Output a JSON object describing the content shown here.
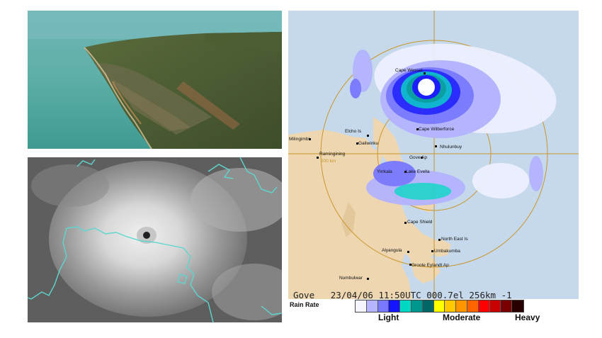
{
  "radar": {
    "places": [
      "Cape Wessel",
      "Milingimbi",
      "Elcho Is",
      "Galiwinku",
      "Cape Wilberforce",
      "Nhulunbuy",
      "Ramingining",
      "Gove Ap",
      "Yirrkala",
      "Lake Evella",
      "Cape Shield",
      "North East Is",
      "Alyangula",
      "Umbakumba",
      "Groote Eylandt Ap",
      "Numbulwar"
    ],
    "range_ring_label": "200 km",
    "status": {
      "station": "Gove",
      "date": "23/04/06",
      "time": "11:50UTC",
      "elevation": "000.7el",
      "range": "256km",
      "trailer": "-1"
    },
    "rain_rate_label": "Rain Rate",
    "scale_colors": [
      "#f5f5ff",
      "#b4b4ff",
      "#7878ff",
      "#1414ff",
      "#00d8c3",
      "#009690",
      "#006666",
      "#ffff00",
      "#ffc800",
      "#ff9600",
      "#ff6400",
      "#ff0000",
      "#c80000",
      "#780000",
      "#280000"
    ],
    "scale_labels": {
      "light": "Light",
      "moderate": "Moderate",
      "heavy": "Heavy"
    }
  }
}
